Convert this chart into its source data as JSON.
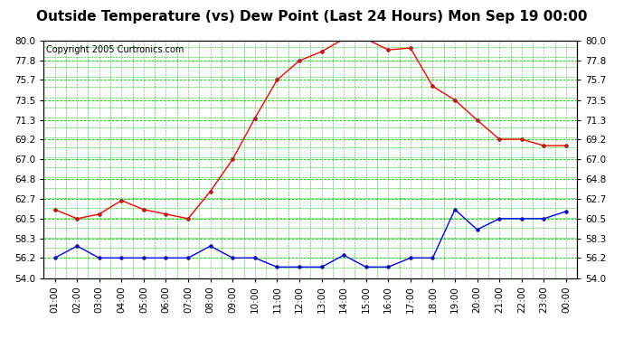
{
  "title": "Outside Temperature (vs) Dew Point (Last 24 Hours) Mon Sep 19 00:00",
  "copyright": "Copyright 2005 Curtronics.com",
  "hours": [
    "01:00",
    "02:00",
    "03:00",
    "04:00",
    "05:00",
    "06:00",
    "07:00",
    "08:00",
    "09:00",
    "10:00",
    "11:00",
    "12:00",
    "13:00",
    "14:00",
    "15:00",
    "16:00",
    "17:00",
    "18:00",
    "19:00",
    "20:00",
    "21:00",
    "22:00",
    "23:00",
    "00:00"
  ],
  "temp": [
    61.5,
    60.5,
    61.0,
    62.5,
    61.5,
    61.0,
    60.5,
    63.5,
    67.0,
    71.5,
    75.7,
    77.8,
    78.8,
    80.2,
    80.2,
    79.0,
    79.2,
    75.0,
    73.5,
    71.3,
    69.2,
    69.2,
    68.5,
    68.5
  ],
  "dew": [
    56.2,
    57.5,
    56.2,
    56.2,
    56.2,
    56.2,
    56.2,
    57.5,
    56.2,
    56.2,
    55.2,
    55.2,
    55.2,
    56.5,
    55.2,
    55.2,
    56.2,
    56.2,
    61.5,
    59.3,
    60.5,
    60.5,
    60.5,
    61.3
  ],
  "temp_color": "#ff0000",
  "dew_color": "#0000ff",
  "bg_color": "#ffffff",
  "grid_color": "#00cc00",
  "vgrid_color": "#aaaaaa",
  "ylim": [
    54.0,
    80.0
  ],
  "yticks": [
    54.0,
    56.2,
    58.3,
    60.5,
    62.7,
    64.8,
    67.0,
    69.2,
    71.3,
    73.5,
    75.7,
    77.8,
    80.0
  ],
  "title_fontsize": 11,
  "copyright_fontsize": 7,
  "tick_fontsize": 7.5
}
